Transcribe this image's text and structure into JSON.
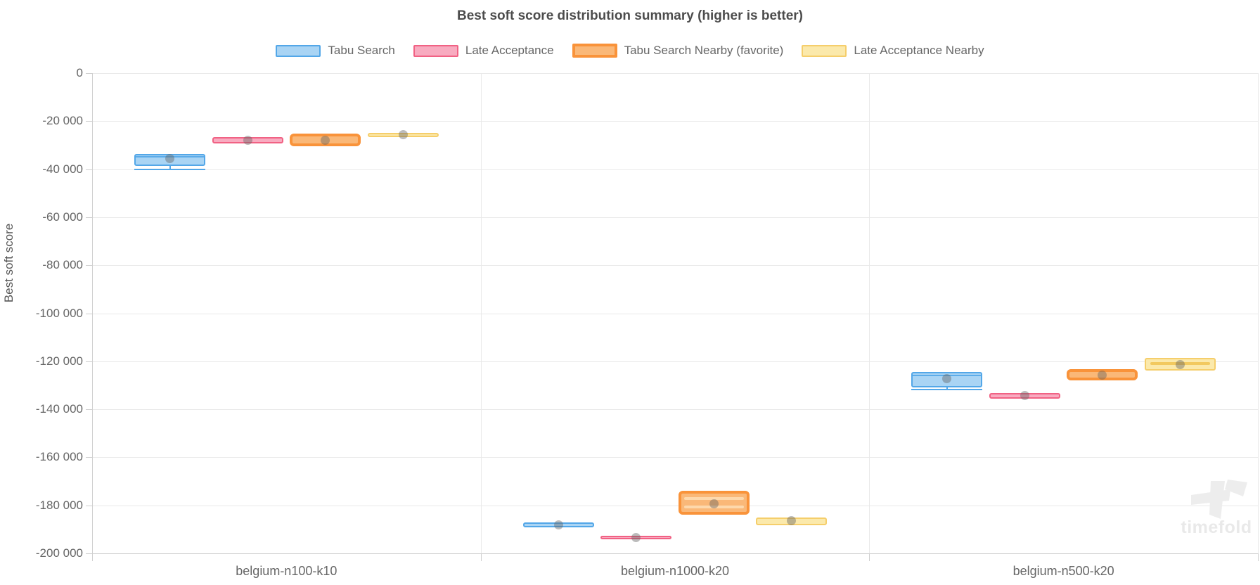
{
  "title": "Best soft score distribution summary (higher is better)",
  "watermark": {
    "text": "timefold"
  },
  "chart_data": {
    "type": "boxplot",
    "title": "Best soft score distribution summary (higher is better)",
    "categories": [
      "belgium-n100-k10",
      "belgium-n1000-k20",
      "belgium-n500-k20"
    ],
    "y_axis": {
      "label": "Best soft score",
      "min": -200000,
      "max": 0,
      "tick_step": 20000,
      "ticks": [
        {
          "label": "0",
          "value": 0
        },
        {
          "label": "-20 000",
          "value": -20000
        },
        {
          "label": "-40 000",
          "value": -40000
        },
        {
          "label": "-60 000",
          "value": -60000
        },
        {
          "label": "-80 000",
          "value": -80000
        },
        {
          "label": "-100 000",
          "value": -100000
        },
        {
          "label": "-120 000",
          "value": -120000
        },
        {
          "label": "-140 000",
          "value": -140000
        },
        {
          "label": "-160 000",
          "value": -160000
        },
        {
          "label": "-180 000",
          "value": -180000
        },
        {
          "label": "-200 000",
          "value": -200000
        }
      ]
    },
    "grid": true,
    "legend_position": "top",
    "series": [
      {
        "name": "Tabu Search",
        "border_color": "#53a7e8",
        "fill_color": "#a9d4f4",
        "favorite": false,
        "boxes": [
          {
            "q3": -33800,
            "q1": -38700,
            "median": -34600,
            "mean": -35700,
            "min": -40000
          },
          {
            "q3": -187200,
            "q1": -189200,
            "mean": -188200
          },
          {
            "q3": -124500,
            "q1": -130900,
            "median": -125600,
            "mean": -127200,
            "min": -131800
          }
        ]
      },
      {
        "name": "Late Acceptance",
        "border_color": "#f16284",
        "fill_color": "#f8abc0",
        "favorite": false,
        "boxes": [
          {
            "q3": -26600,
            "q1": -29400,
            "mean": -28100
          },
          {
            "q3": -192800,
            "q1": -194200,
            "mean": -193500
          },
          {
            "q3": -133200,
            "q1": -135500,
            "mean": -134300
          }
        ]
      },
      {
        "name": "Tabu Search Nearby (favorite)",
        "border_color": "#f9933a",
        "fill_color": "#fab878",
        "inner_color": "#fdd8ac",
        "favorite": true,
        "boxes": [
          {
            "q3": -25200,
            "q1": -30600,
            "mean": -27900
          },
          {
            "q3": -173900,
            "q1": -183900,
            "mean": -179500,
            "median_lines": [
              -177300,
              -180800
            ]
          },
          {
            "q3": -123300,
            "q1": -128100,
            "mean": -125900
          }
        ]
      },
      {
        "name": "Late Acceptance Nearby",
        "border_color": "#f5ce6b",
        "fill_color": "#fbe9ab",
        "inner_color": "#f2c95f",
        "favorite": false,
        "boxes": [
          {
            "q3": -24900,
            "q1": -26600,
            "mean": -25700
          },
          {
            "q3": -185100,
            "q1": -188200,
            "mean": -186500
          },
          {
            "q3": -118600,
            "q1": -124000,
            "mean": -121300,
            "median_lines": [
              -120800
            ]
          }
        ]
      }
    ]
  }
}
